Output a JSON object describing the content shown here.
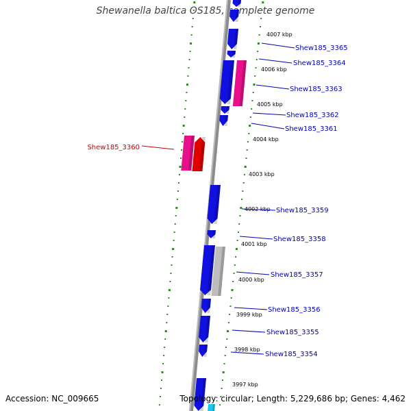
{
  "title": "Shewanella baltica OS185, complete genome",
  "accession": "Accession: NC_009665",
  "topology": "Topology: circular; Length: 5,229,686 bp; Genes: 4,462",
  "colors": {
    "backbone": "#8c8c8c",
    "forward_gene": "#1010e0",
    "highlight_gene": "#e8108a",
    "red_gene": "#e00000",
    "gray_gene": "#bdbdbd",
    "cyan_gene": "#1ac8f0",
    "ticks": "#2a8a1a",
    "label_blue": "#0000bb",
    "label_red": "#cc0000"
  },
  "kbp_ticks": [
    "4007 kbp",
    "4006 kbp",
    "4005 kbp",
    "4004 kbp",
    "4003 kbp",
    "4002 kbp",
    "4001 kbp",
    "4000 kbp",
    "3999 kbp",
    "3998 kbp",
    "3997 kbp"
  ],
  "gene_labels": [
    {
      "text": "Shew185_3365",
      "color": "blue"
    },
    {
      "text": "Shew185_3364",
      "color": "blue"
    },
    {
      "text": "Shew185_3363",
      "color": "blue"
    },
    {
      "text": "Shew185_3362",
      "color": "blue"
    },
    {
      "text": "Shew185_3361",
      "color": "blue"
    },
    {
      "text": "Shew185_3360",
      "color": "red"
    },
    {
      "text": "Shew185_3359",
      "color": "blue"
    },
    {
      "text": "Shew185_3358",
      "color": "blue"
    },
    {
      "text": "Shew185_3357",
      "color": "blue"
    },
    {
      "text": "Shew185_3356",
      "color": "blue"
    },
    {
      "text": "Shew185_3355",
      "color": "blue"
    },
    {
      "text": "Shew185_3354",
      "color": "blue"
    }
  ]
}
